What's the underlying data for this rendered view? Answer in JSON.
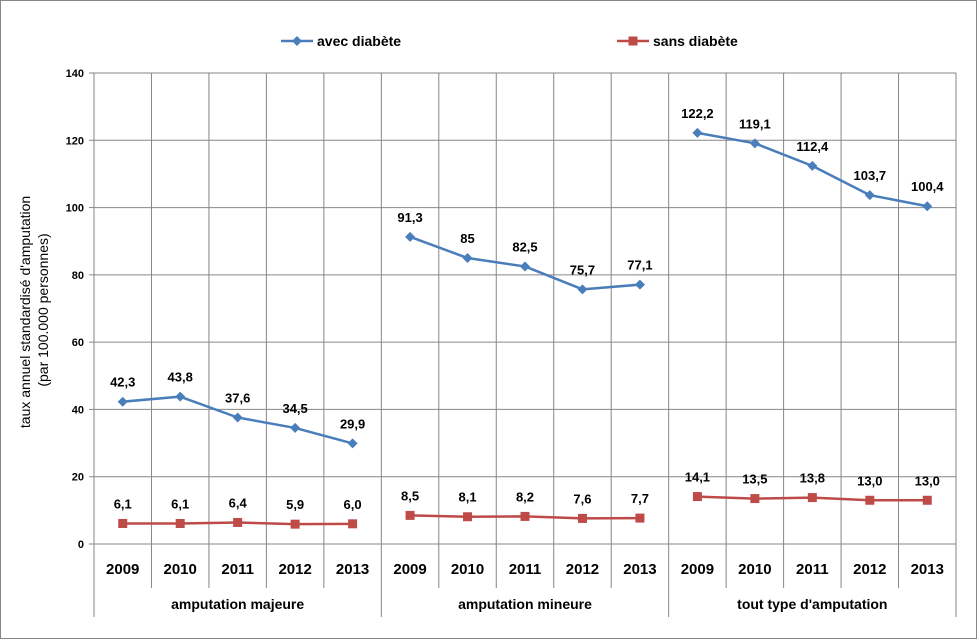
{
  "chart_data": {
    "type": "line",
    "ylabel_line1": "taux annuel standardisé d'amputation",
    "ylabel_line2": "(par 100.000 personnes)",
    "ylim": [
      0,
      140
    ],
    "yticks": [
      0,
      20,
      40,
      60,
      80,
      100,
      120,
      140
    ],
    "grid": true,
    "legend_position": "top",
    "groups": [
      "amputation majeure",
      "amputation mineure",
      "tout type d'amputation"
    ],
    "years": [
      "2009",
      "2010",
      "2011",
      "2012",
      "2013"
    ],
    "series": [
      {
        "name": "avec diabète",
        "color": "#4a7ebb",
        "marker": "diamond",
        "values": [
          [
            42.3,
            43.8,
            37.6,
            34.5,
            29.9
          ],
          [
            91.3,
            85,
            82.5,
            75.7,
            77.1
          ],
          [
            122.2,
            119.1,
            112.4,
            103.7,
            100.4
          ]
        ],
        "labels": [
          [
            "42,3",
            "43,8",
            "37,6",
            "34,5",
            "29,9"
          ],
          [
            "91,3",
            "85",
            "82,5",
            "75,7",
            "77,1"
          ],
          [
            "122,2",
            "119,1",
            "112,4",
            "103,7",
            "100,4"
          ]
        ]
      },
      {
        "name": "sans diabète",
        "color": "#be4b48",
        "marker": "square",
        "values": [
          [
            6.1,
            6.1,
            6.4,
            5.9,
            6.0
          ],
          [
            8.5,
            8.1,
            8.2,
            7.6,
            7.7
          ],
          [
            14.1,
            13.5,
            13.8,
            13.0,
            13.0
          ]
        ],
        "labels": [
          [
            "6,1",
            "6,1",
            "6,4",
            "5,9",
            "6,0"
          ],
          [
            "8,5",
            "8,1",
            "8,2",
            "7,6",
            "7,7"
          ],
          [
            "14,1",
            "13,5",
            "13,8",
            "13,0",
            "13,0"
          ]
        ]
      }
    ]
  }
}
